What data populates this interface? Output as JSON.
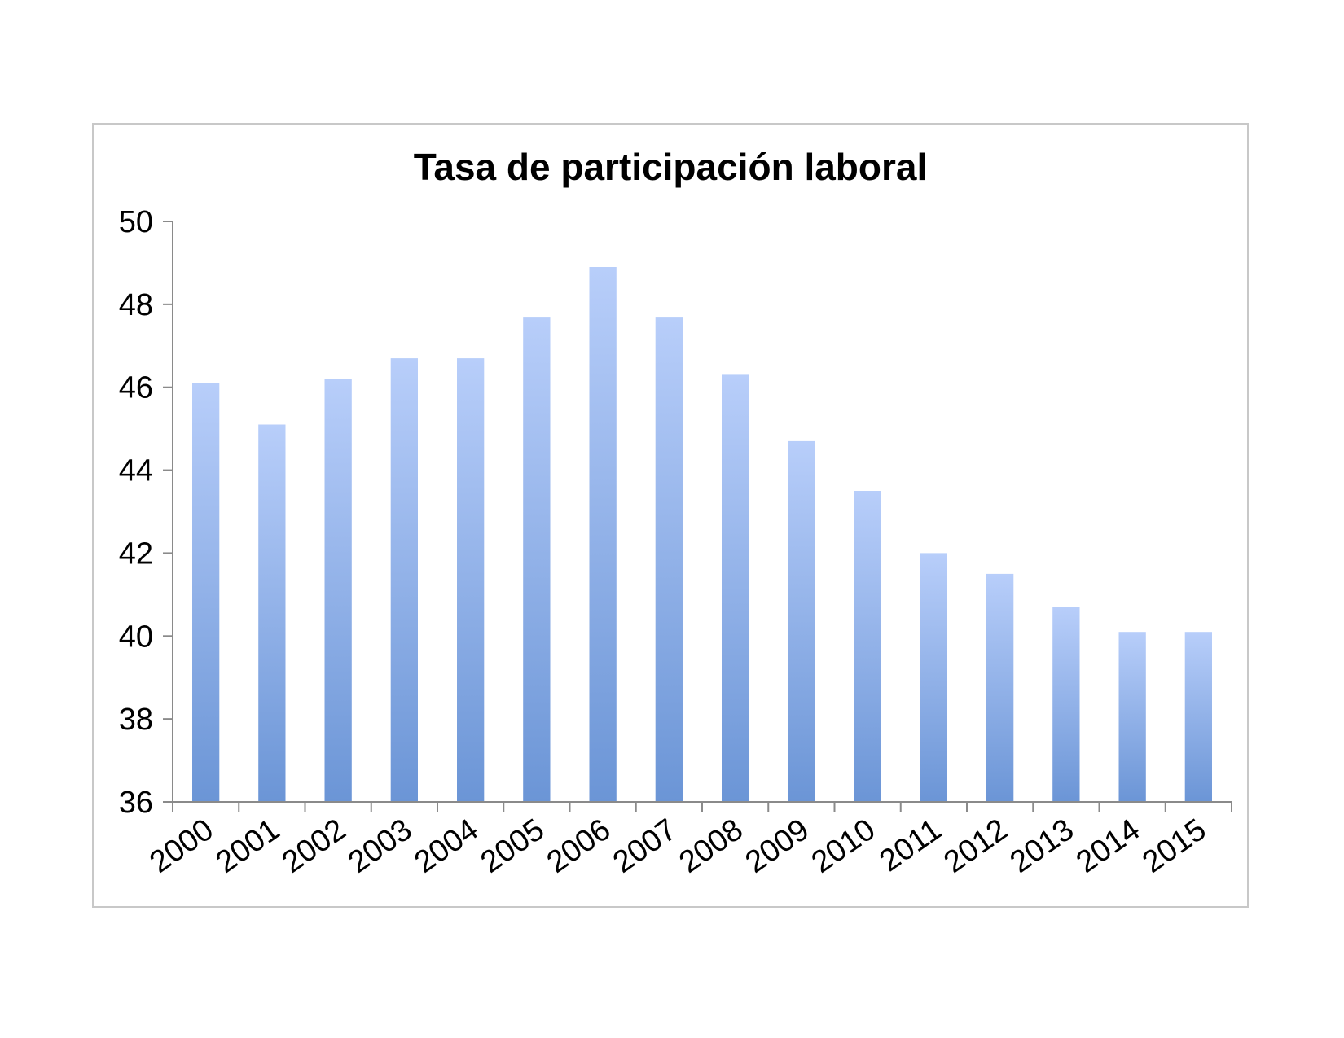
{
  "chart_data": {
    "type": "bar",
    "title": "Tasa de participación laboral",
    "xlabel": "",
    "ylabel": "",
    "categories": [
      "2000",
      "2001",
      "2002",
      "2003",
      "2004",
      "2005",
      "2006",
      "2007",
      "2008",
      "2009",
      "2010",
      "2011",
      "2012",
      "2013",
      "2014",
      "2015"
    ],
    "values": [
      46.1,
      45.1,
      46.2,
      46.7,
      46.7,
      47.7,
      48.9,
      47.7,
      46.3,
      44.7,
      43.5,
      42.0,
      41.5,
      40.7,
      40.1,
      40.1
    ],
    "ylim": [
      36,
      50
    ],
    "yticks": [
      "36",
      "38",
      "40",
      "42",
      "44",
      "46",
      "48",
      "50"
    ],
    "grid": false,
    "legend": "none",
    "colors": {
      "bar_top": "#b8cefa",
      "bar_bottom": "#6b95d6",
      "axis": "#8a8a8a",
      "frame": "#c8c8c8"
    }
  }
}
